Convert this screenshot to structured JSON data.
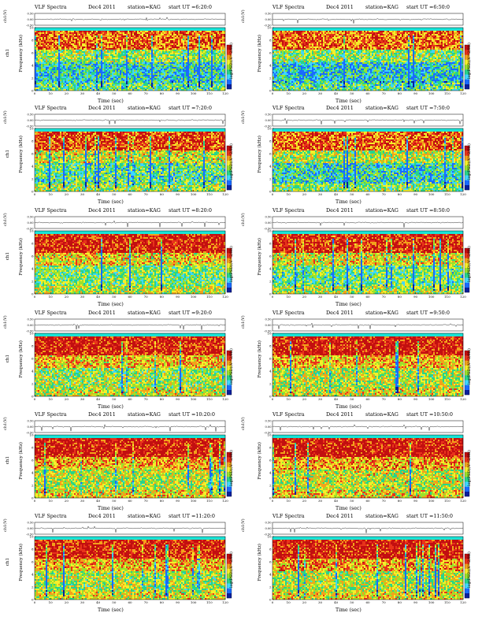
{
  "colors": {
    "spec_scale": [
      "#0a1f9c",
      "#1a6bff",
      "#3fd7ff",
      "#28d48a",
      "#9be22b",
      "#f5ef2a",
      "#f2a21b",
      "#e8331b",
      "#c20f10"
    ],
    "band_top": "#19e3d6",
    "trace": "#000000"
  },
  "chart_data": [
    {
      "type": "heatmap",
      "title": "VLF Spectra",
      "date": "Dec4 2011",
      "station": "station=KAG",
      "start": "start UT =6:20:0",
      "top_ylabel": "ch1(V)",
      "ylabel_line1": "ch1",
      "ylabel_line2": "Frequency (kHz)",
      "xlabel": "Time (sec)",
      "cbar_label": "log(PSD)(V^2/Hz)",
      "xlim": [
        0,
        120
      ],
      "ylim": [
        0,
        10
      ],
      "top_ylim": [
        -0.5,
        0.5
      ],
      "x_ticks": [
        0,
        10,
        20,
        30,
        40,
        50,
        60,
        70,
        80,
        90,
        100,
        110,
        120
      ],
      "y_ticks": [
        0,
        2,
        4,
        6,
        8,
        10
      ],
      "top_yticks": [
        "0.50",
        "0.00",
        "-0.50"
      ],
      "activity": {
        "low": 0.28,
        "mid": 0.42,
        "high": 0.8
      }
    },
    {
      "type": "heatmap",
      "title": "VLF Spectra",
      "date": "Dec4 2011",
      "station": "station=KAG",
      "start": "start UT =6:50:0",
      "top_ylabel": "ch1(V)",
      "ylabel_line1": "",
      "ylabel_line2": "Frequency (kHz)",
      "xlabel": "Time (sec)",
      "cbar_label": "log(PSD)(V^2/Hz)",
      "xlim": [
        0,
        120
      ],
      "ylim": [
        0,
        10
      ],
      "top_ylim": [
        -0.5,
        0.5
      ],
      "x_ticks": [
        0,
        10,
        20,
        30,
        40,
        50,
        60,
        70,
        80,
        90,
        100,
        110,
        120
      ],
      "y_ticks": [
        0,
        2,
        4,
        6,
        8,
        10
      ],
      "top_yticks": [
        "0.50",
        "0.00",
        "-0.50"
      ],
      "activity": {
        "low": 0.25,
        "mid": 0.4,
        "high": 0.78
      }
    },
    {
      "type": "heatmap",
      "title": "VLF Spectra",
      "date": "Dec4 2011",
      "station": "station=KAG",
      "start": "start UT =7:20:0",
      "top_ylabel": "ch1(V)",
      "ylabel_line1": "ch1",
      "ylabel_line2": "Frequency (kHz)",
      "xlabel": "Time (sec)",
      "cbar_label": "log(PSD)(V^2/Hz)",
      "xlim": [
        0,
        120
      ],
      "ylim": [
        0,
        10
      ],
      "top_ylim": [
        -0.5,
        0.5
      ],
      "x_ticks": [
        0,
        10,
        20,
        30,
        40,
        50,
        60,
        70,
        80,
        90,
        100,
        110,
        120
      ],
      "y_ticks": [
        0,
        2,
        4,
        6,
        8,
        10
      ],
      "top_yticks": [
        "0.50",
        "0.00",
        "-0.50"
      ],
      "activity": {
        "low": 0.35,
        "mid": 0.5,
        "high": 0.85
      }
    },
    {
      "type": "heatmap",
      "title": "VLF Spectra",
      "date": "Dec4 2011",
      "station": "station=KAG",
      "start": "start UT =7:50:0",
      "top_ylabel": "ch1(V)",
      "ylabel_line1": "",
      "ylabel_line2": "Frequency (kHz)",
      "xlabel": "Time (sec)",
      "cbar_label": "log(PSD)(V^2/Hz)",
      "xlim": [
        0,
        120
      ],
      "ylim": [
        0,
        10
      ],
      "top_ylim": [
        -0.5,
        0.5
      ],
      "x_ticks": [
        0,
        10,
        20,
        30,
        40,
        50,
        60,
        70,
        80,
        90,
        100,
        110,
        120
      ],
      "y_ticks": [
        0,
        2,
        4,
        6,
        8,
        10
      ],
      "top_yticks": [
        "0.50",
        "0.00",
        "-0.50"
      ],
      "activity": {
        "low": 0.3,
        "mid": 0.46,
        "high": 0.8
      }
    },
    {
      "type": "heatmap",
      "title": "VLF Spectra",
      "date": "Dec4 2011",
      "station": "station=KAG",
      "start": "start UT =8:20:0",
      "top_ylabel": "ch1(V)",
      "ylabel_line1": "ch1",
      "ylabel_line2": "Frequency (kHz)",
      "xlabel": "Time (sec)",
      "cbar_label": "log(PSD)(V^2/Hz)",
      "xlim": [
        0,
        120
      ],
      "ylim": [
        0,
        10
      ],
      "top_ylim": [
        -0.5,
        0.5
      ],
      "x_ticks": [
        0,
        10,
        20,
        30,
        40,
        50,
        60,
        70,
        80,
        90,
        100,
        110,
        120
      ],
      "y_ticks": [
        0,
        2,
        4,
        6,
        8,
        10
      ],
      "top_yticks": [
        "0.50",
        "0.00",
        "-0.50"
      ],
      "activity": {
        "low": 0.4,
        "mid": 0.55,
        "high": 0.9
      }
    },
    {
      "type": "heatmap",
      "title": "VLF Spectra",
      "date": "Dec4 2011",
      "station": "station=KAG",
      "start": "start UT =8:50:0",
      "top_ylabel": "ch1(V)",
      "ylabel_line1": "",
      "ylabel_line2": "Frequency (kHz)",
      "xlabel": "Time (sec)",
      "cbar_label": "log(PSD)(V^2/Hz)",
      "xlim": [
        0,
        120
      ],
      "ylim": [
        0,
        10
      ],
      "top_ylim": [
        -0.5,
        0.5
      ],
      "x_ticks": [
        0,
        10,
        20,
        30,
        40,
        50,
        60,
        70,
        80,
        90,
        100,
        110,
        120
      ],
      "y_ticks": [
        0,
        2,
        4,
        6,
        8,
        10
      ],
      "top_yticks": [
        "0.50",
        "0.00",
        "-0.50"
      ],
      "activity": {
        "low": 0.38,
        "mid": 0.53,
        "high": 0.88
      }
    },
    {
      "type": "heatmap",
      "title": "VLF Spectra",
      "date": "Dec4 2011",
      "station": "station=KAG",
      "start": "start UT =9:20:0",
      "top_ylabel": "ch1(V)",
      "ylabel_line1": "ch1",
      "ylabel_line2": "Frequency (kHz)",
      "xlabel": "Time (sec)",
      "cbar_label": "log(PSD)(V^2/Hz)",
      "xlim": [
        0,
        120
      ],
      "ylim": [
        0,
        10
      ],
      "top_ylim": [
        -0.5,
        0.5
      ],
      "x_ticks": [
        0,
        10,
        20,
        30,
        40,
        50,
        60,
        70,
        80,
        90,
        100,
        110,
        120
      ],
      "y_ticks": [
        0,
        2,
        4,
        6,
        8,
        10
      ],
      "top_yticks": [
        "0.50",
        "0.00",
        "-0.50"
      ],
      "activity": {
        "low": 0.45,
        "mid": 0.58,
        "high": 0.9
      }
    },
    {
      "type": "heatmap",
      "title": "VLF Spectra",
      "date": "Dec4 2011",
      "station": "station=KAG",
      "start": "start UT =9:50:0",
      "top_ylabel": "ch1(V)",
      "ylabel_line1": "",
      "ylabel_line2": "Frequency (kHz)",
      "xlabel": "Time (sec)",
      "cbar_label": "log(PSD)(V^2/Hz)",
      "xlim": [
        0,
        120
      ],
      "ylim": [
        0,
        10
      ],
      "top_ylim": [
        -0.5,
        0.5
      ],
      "x_ticks": [
        0,
        10,
        20,
        30,
        40,
        50,
        60,
        70,
        80,
        90,
        100,
        110,
        120
      ],
      "y_ticks": [
        0,
        2,
        4,
        6,
        8,
        10
      ],
      "top_yticks": [
        "0.50",
        "0.00",
        "-0.50"
      ],
      "activity": {
        "low": 0.5,
        "mid": 0.6,
        "high": 0.92
      }
    },
    {
      "type": "heatmap",
      "title": "VLF Spectra",
      "date": "Dec4 2011",
      "station": "station=KAG",
      "start": "start UT =10:20:0",
      "top_ylabel": "ch1(V)",
      "ylabel_line1": "ch1",
      "ylabel_line2": "Frequency (kHz)",
      "xlabel": "Time (sec)",
      "cbar_label": "log(PSD)(V^2/Hz)",
      "xlim": [
        0,
        120
      ],
      "ylim": [
        0,
        10
      ],
      "top_ylim": [
        -0.5,
        0.5
      ],
      "x_ticks": [
        0,
        10,
        20,
        30,
        40,
        50,
        60,
        70,
        80,
        90,
        100,
        110,
        120
      ],
      "y_ticks": [
        0,
        2,
        4,
        6,
        8,
        10
      ],
      "top_yticks": [
        "0.50",
        "0.00",
        "-0.50"
      ],
      "activity": {
        "low": 0.5,
        "mid": 0.62,
        "high": 0.93
      }
    },
    {
      "type": "heatmap",
      "title": "VLF Spectra",
      "date": "Dec4 2011",
      "station": "station=KAG",
      "start": "start UT =10:50:0",
      "top_ylabel": "ch1(V)",
      "ylabel_line1": "",
      "ylabel_line2": "Frequency (kHz)",
      "xlabel": "Time (sec)",
      "cbar_label": "log(PSD)(V^2/Hz)",
      "xlim": [
        0,
        120
      ],
      "ylim": [
        0,
        10
      ],
      "top_ylim": [
        -0.5,
        0.5
      ],
      "x_ticks": [
        0,
        10,
        20,
        30,
        40,
        50,
        60,
        70,
        80,
        90,
        100,
        110,
        120
      ],
      "y_ticks": [
        0,
        2,
        4,
        6,
        8,
        10
      ],
      "top_yticks": [
        "0.50",
        "0.00",
        "-0.50"
      ],
      "activity": {
        "low": 0.52,
        "mid": 0.63,
        "high": 0.93
      }
    },
    {
      "type": "heatmap",
      "title": "VLF Spectra",
      "date": "Dec4 2011",
      "station": "station=KAG",
      "start": "start UT =11:20:0",
      "top_ylabel": "ch1(V)",
      "ylabel_line1": "ch1",
      "ylabel_line2": "Frequency (kHz)",
      "xlabel": "Time (sec)",
      "cbar_label": "log(PSD)(V^2/Hz)",
      "xlim": [
        0,
        120
      ],
      "ylim": [
        0,
        10
      ],
      "top_ylim": [
        -0.5,
        0.5
      ],
      "x_ticks": [
        0,
        10,
        20,
        30,
        40,
        50,
        60,
        70,
        80,
        90,
        100,
        110,
        120
      ],
      "y_ticks": [
        0,
        2,
        4,
        6,
        8,
        10
      ],
      "top_yticks": [
        "0.50",
        "0.00",
        "-0.50"
      ],
      "activity": {
        "low": 0.48,
        "mid": 0.6,
        "high": 0.9
      }
    },
    {
      "type": "heatmap",
      "title": "VLF Spectra",
      "date": "Dec4 2011",
      "station": "station=KAG",
      "start": "start UT =11:50:0",
      "top_ylabel": "ch1(V)",
      "ylabel_line1": "",
      "ylabel_line2": "Frequency (kHz)",
      "xlabel": "Time (sec)",
      "cbar_label": "log(PSD)(V^2/Hz)",
      "xlim": [
        0,
        120
      ],
      "ylim": [
        0,
        10
      ],
      "top_ylim": [
        -0.5,
        0.5
      ],
      "x_ticks": [
        0,
        10,
        20,
        30,
        40,
        50,
        60,
        70,
        80,
        90,
        100,
        110,
        120
      ],
      "y_ticks": [
        0,
        2,
        4,
        6,
        8,
        10
      ],
      "top_yticks": [
        "0.50",
        "0.00",
        "-0.50"
      ],
      "activity": {
        "low": 0.5,
        "mid": 0.62,
        "high": 0.92
      }
    }
  ]
}
